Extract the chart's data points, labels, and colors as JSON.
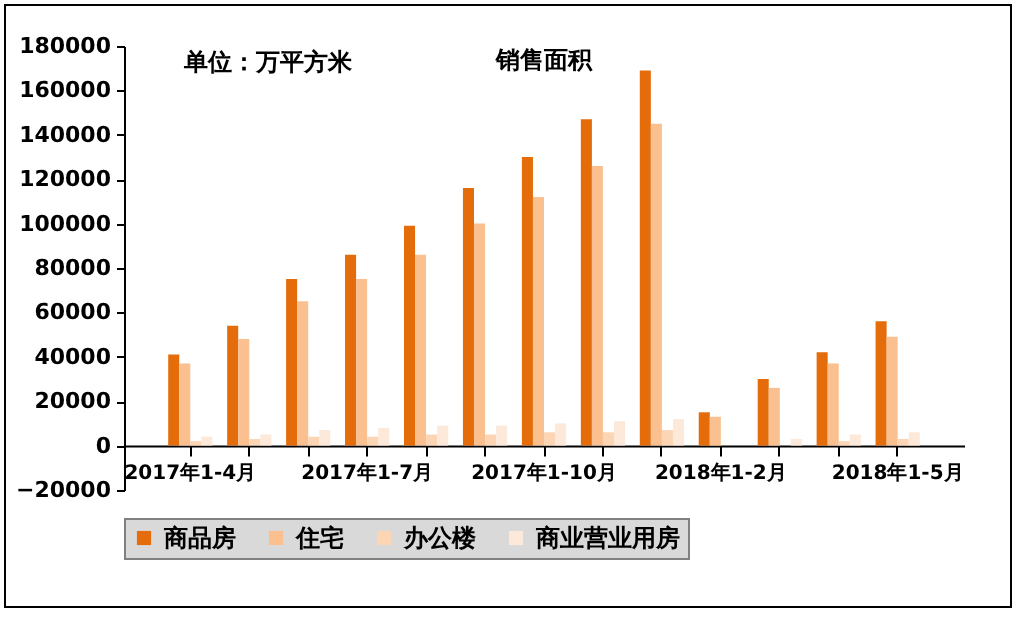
{
  "chart_data": {
    "type": "bar",
    "title": "销售面积",
    "annotations": [
      "单位：万平方米"
    ],
    "categories": [
      "2017年1-4月",
      null,
      null,
      "2017年1-7月",
      null,
      null,
      "2017年1-10月",
      null,
      null,
      "2018年1-2月",
      null,
      null,
      "2018年1-5月"
    ],
    "series": [
      {
        "name": "商品房",
        "color": "#e46c0a",
        "values": [
          41000,
          54000,
          75000,
          86000,
          99000,
          116000,
          130000,
          147000,
          169000,
          15000,
          30000,
          42000,
          56000
        ]
      },
      {
        "name": "住宅",
        "color": "#fac090",
        "values": [
          37000,
          48000,
          65000,
          75000,
          86000,
          100000,
          112000,
          126000,
          145000,
          13000,
          26000,
          37000,
          49000
        ]
      },
      {
        "name": "办公楼",
        "color": "#fcd5b5",
        "values": [
          2000,
          3000,
          4000,
          4000,
          5000,
          5000,
          6000,
          6000,
          7000,
          null,
          null,
          2000,
          3000
        ]
      },
      {
        "name": "商业营业用房",
        "color": "#fde9d9",
        "values": [
          4000,
          5000,
          7000,
          8000,
          9000,
          9000,
          10000,
          11000,
          12000,
          null,
          3000,
          5000,
          6000
        ]
      }
    ],
    "ylim": [
      -20000,
      180000
    ],
    "yticks": [
      -20000,
      0,
      20000,
      40000,
      60000,
      80000,
      100000,
      120000,
      140000,
      160000,
      180000
    ],
    "grid": false,
    "legend": "bottom"
  }
}
